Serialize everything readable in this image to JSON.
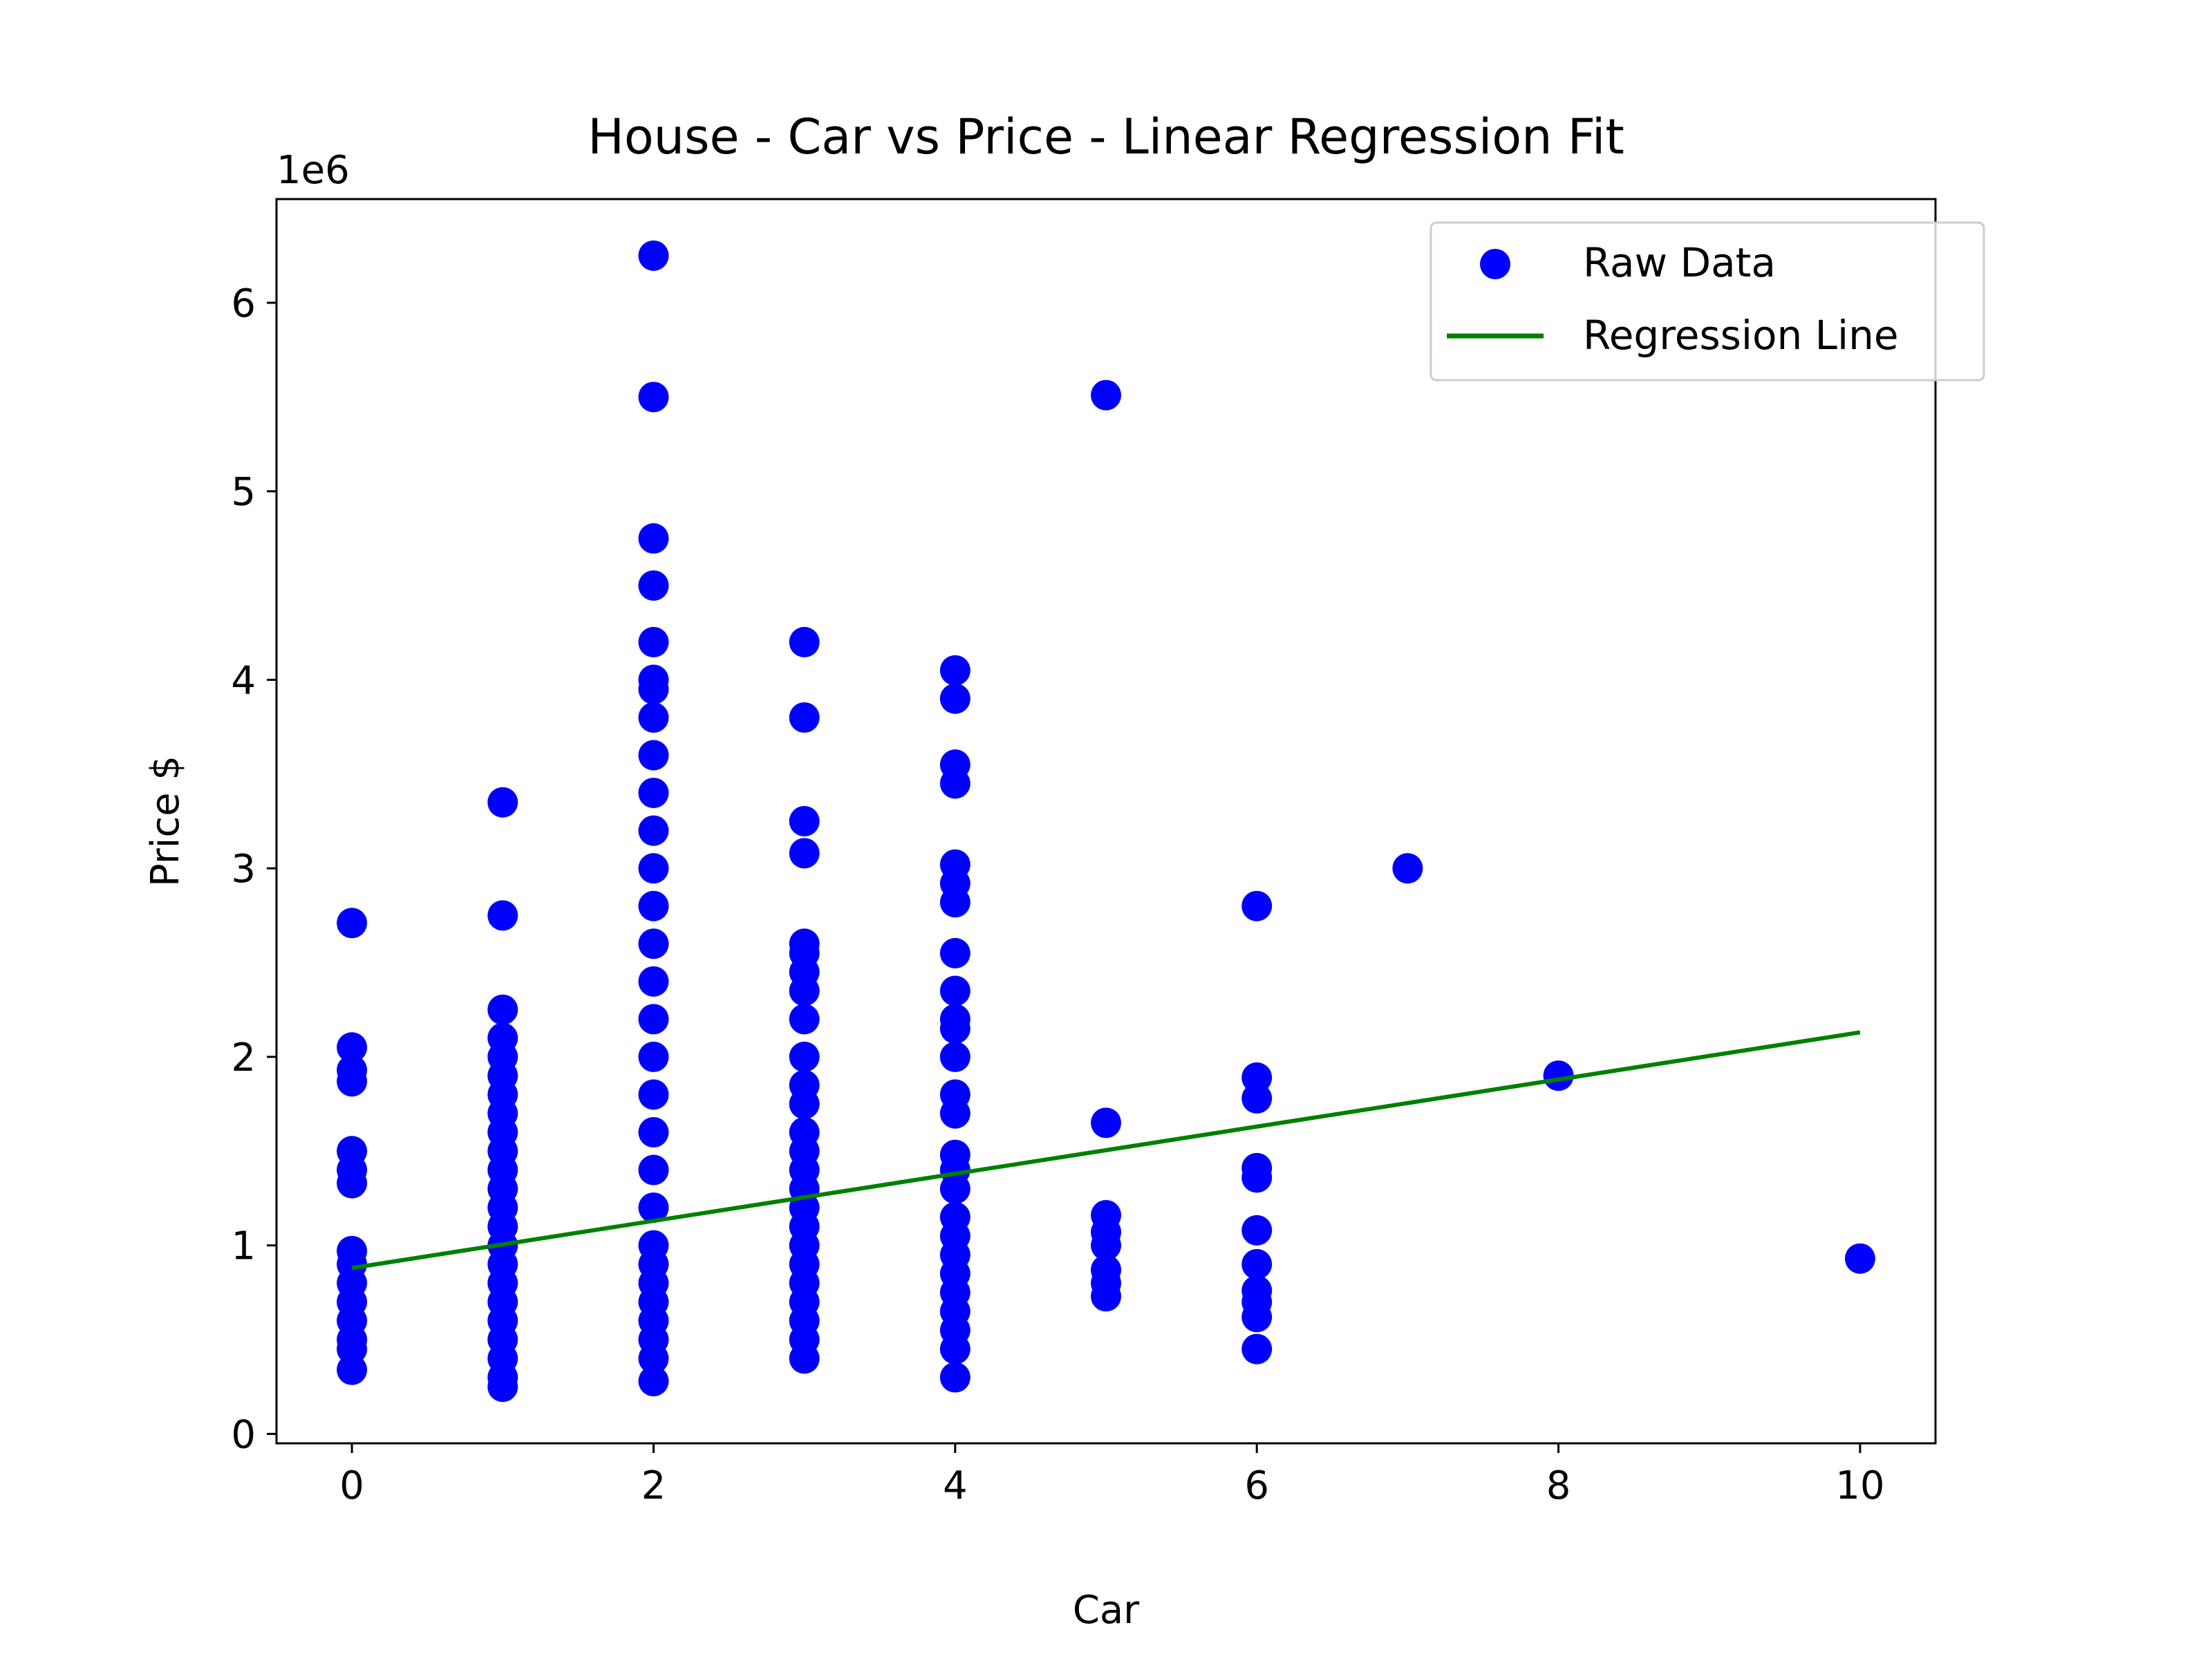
{
  "chart_data": {
    "type": "scatter",
    "title": "House - Car vs Price - Linear Regression Fit",
    "xlabel": "Car",
    "ylabel": "Price $",
    "y_offset_text": "1e6",
    "xlim": [
      -0.5,
      10.5
    ],
    "ylim": [
      -50000,
      6550000
    ],
    "x_ticks": [
      0,
      2,
      4,
      6,
      8,
      10
    ],
    "y_ticks": [
      0,
      1000000,
      2000000,
      3000000,
      4000000,
      5000000,
      6000000
    ],
    "x_tick_labels": [
      "0",
      "2",
      "4",
      "6",
      "8",
      "10"
    ],
    "y_tick_labels": [
      "0",
      "1",
      "2",
      "3",
      "4",
      "5",
      "6"
    ],
    "grid": false,
    "legend": {
      "position": "top-right",
      "entries": [
        {
          "label": "Raw Data",
          "kind": "marker",
          "color": "#0000ff"
        },
        {
          "label": "Regression Line",
          "kind": "line",
          "color": "#008000"
        }
      ]
    },
    "series": [
      {
        "name": "Raw Data",
        "kind": "scatter",
        "color": "#0000ff",
        "points": [
          [
            0,
            340000
          ],
          [
            0,
            450000
          ],
          [
            0,
            500000
          ],
          [
            0,
            600000
          ],
          [
            0,
            700000
          ],
          [
            0,
            800000
          ],
          [
            0,
            900000
          ],
          [
            0,
            970000
          ],
          [
            0,
            1330000
          ],
          [
            0,
            1400000
          ],
          [
            0,
            1500000
          ],
          [
            0,
            1870000
          ],
          [
            0,
            1930000
          ],
          [
            0,
            2050000
          ],
          [
            0,
            2710000
          ],
          [
            1,
            250000
          ],
          [
            1,
            300000
          ],
          [
            1,
            400000
          ],
          [
            1,
            500000
          ],
          [
            1,
            600000
          ],
          [
            1,
            700000
          ],
          [
            1,
            800000
          ],
          [
            1,
            900000
          ],
          [
            1,
            1000000
          ],
          [
            1,
            1100000
          ],
          [
            1,
            1200000
          ],
          [
            1,
            1300000
          ],
          [
            1,
            1400000
          ],
          [
            1,
            1500000
          ],
          [
            1,
            1600000
          ],
          [
            1,
            1700000
          ],
          [
            1,
            1800000
          ],
          [
            1,
            1900000
          ],
          [
            1,
            2000000
          ],
          [
            1,
            2100000
          ],
          [
            1,
            2250000
          ],
          [
            1,
            2750000
          ],
          [
            1,
            3350000
          ],
          [
            2,
            280000
          ],
          [
            2,
            400000
          ],
          [
            2,
            500000
          ],
          [
            2,
            600000
          ],
          [
            2,
            700000
          ],
          [
            2,
            800000
          ],
          [
            2,
            900000
          ],
          [
            2,
            1000000
          ],
          [
            2,
            1200000
          ],
          [
            2,
            1400000
          ],
          [
            2,
            1600000
          ],
          [
            2,
            1800000
          ],
          [
            2,
            2000000
          ],
          [
            2,
            2200000
          ],
          [
            2,
            2400000
          ],
          [
            2,
            2600000
          ],
          [
            2,
            2800000
          ],
          [
            2,
            3000000
          ],
          [
            2,
            3200000
          ],
          [
            2,
            3400000
          ],
          [
            2,
            3600000
          ],
          [
            2,
            3800000
          ],
          [
            2,
            3950000
          ],
          [
            2,
            4000000
          ],
          [
            2,
            4200000
          ],
          [
            2,
            4500000
          ],
          [
            2,
            4750000
          ],
          [
            2,
            5500000
          ],
          [
            2,
            6250000
          ],
          [
            3,
            400000
          ],
          [
            3,
            500000
          ],
          [
            3,
            600000
          ],
          [
            3,
            700000
          ],
          [
            3,
            800000
          ],
          [
            3,
            900000
          ],
          [
            3,
            1000000
          ],
          [
            3,
            1100000
          ],
          [
            3,
            1200000
          ],
          [
            3,
            1300000
          ],
          [
            3,
            1400000
          ],
          [
            3,
            1500000
          ],
          [
            3,
            1600000
          ],
          [
            3,
            1750000
          ],
          [
            3,
            1850000
          ],
          [
            3,
            2000000
          ],
          [
            3,
            2200000
          ],
          [
            3,
            2350000
          ],
          [
            3,
            2450000
          ],
          [
            3,
            2550000
          ],
          [
            3,
            2600000
          ],
          [
            3,
            3080000
          ],
          [
            3,
            3250000
          ],
          [
            3,
            3800000
          ],
          [
            3,
            4200000
          ],
          [
            4,
            300000
          ],
          [
            4,
            450000
          ],
          [
            4,
            550000
          ],
          [
            4,
            650000
          ],
          [
            4,
            750000
          ],
          [
            4,
            850000
          ],
          [
            4,
            950000
          ],
          [
            4,
            1050000
          ],
          [
            4,
            1150000
          ],
          [
            4,
            1300000
          ],
          [
            4,
            1400000
          ],
          [
            4,
            1480000
          ],
          [
            4,
            1700000
          ],
          [
            4,
            1800000
          ],
          [
            4,
            2000000
          ],
          [
            4,
            2150000
          ],
          [
            4,
            2200000
          ],
          [
            4,
            2350000
          ],
          [
            4,
            2550000
          ],
          [
            4,
            2820000
          ],
          [
            4,
            2920000
          ],
          [
            4,
            3020000
          ],
          [
            4,
            3450000
          ],
          [
            4,
            3550000
          ],
          [
            4,
            3900000
          ],
          [
            4,
            4050000
          ],
          [
            5,
            730000
          ],
          [
            5,
            800000
          ],
          [
            5,
            870000
          ],
          [
            5,
            1000000
          ],
          [
            5,
            1070000
          ],
          [
            5,
            1160000
          ],
          [
            5,
            1650000
          ],
          [
            5,
            5510000
          ],
          [
            6,
            450000
          ],
          [
            6,
            620000
          ],
          [
            6,
            700000
          ],
          [
            6,
            760000
          ],
          [
            6,
            900000
          ],
          [
            6,
            1080000
          ],
          [
            6,
            1360000
          ],
          [
            6,
            1410000
          ],
          [
            6,
            1780000
          ],
          [
            6,
            1890000
          ],
          [
            6,
            2800000
          ],
          [
            7,
            3000000
          ],
          [
            8,
            1900000
          ],
          [
            10,
            930000
          ]
        ]
      },
      {
        "name": "Regression Line",
        "kind": "line",
        "color": "#008000",
        "x": [
          0,
          10
        ],
        "y": [
          880000,
          2130000
        ]
      }
    ]
  }
}
